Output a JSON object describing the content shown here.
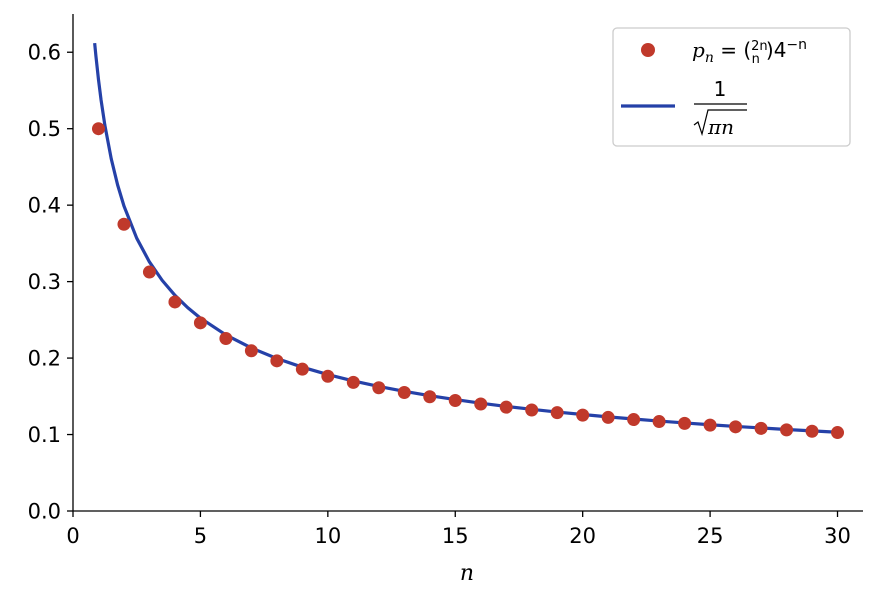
{
  "chart_data": {
    "type": "scatter",
    "xlabel": "n",
    "ylabel": "",
    "xlim": [
      0,
      31
    ],
    "ylim": [
      0,
      0.65
    ],
    "xticks": [
      0,
      5,
      10,
      15,
      20,
      25,
      30
    ],
    "yticks": [
      0.0,
      0.1,
      0.2,
      0.3,
      0.4,
      0.5,
      0.6
    ],
    "xtick_labels": [
      "0",
      "5",
      "10",
      "15",
      "20",
      "25",
      "30"
    ],
    "ytick_labels": [
      "0.0",
      "0.1",
      "0.2",
      "0.3",
      "0.4",
      "0.5",
      "0.6"
    ],
    "grid": false,
    "legend_position": "top-right",
    "series": [
      {
        "kind": "points",
        "legend": "p_n = C(2n, n) 4^-n",
        "color": "#c0392b",
        "x": [
          1,
          2,
          3,
          4,
          5,
          6,
          7,
          8,
          9,
          10,
          11,
          12,
          13,
          14,
          15,
          16,
          17,
          18,
          19,
          20,
          21,
          22,
          23,
          24,
          25,
          26,
          27,
          28,
          29,
          30
        ],
        "y": [
          0.5,
          0.375,
          0.3125,
          0.2734,
          0.2461,
          0.2256,
          0.2095,
          0.1964,
          0.1855,
          0.1762,
          0.1682,
          0.1612,
          0.155,
          0.1494,
          0.1445,
          0.1399,
          0.1358,
          0.1321,
          0.1286,
          0.1254,
          0.1224,
          0.1196,
          0.117,
          0.1146,
          0.1123,
          0.1101,
          0.1081,
          0.1061,
          0.1043,
          0.1026
        ]
      },
      {
        "kind": "line",
        "legend": "1/sqrt(pi n)",
        "color": "#2541a8",
        "x": [
          0.85,
          0.9,
          1,
          1.1,
          1.25,
          1.5,
          1.75,
          2,
          2.5,
          3,
          3.5,
          4,
          4.5,
          5,
          6,
          7,
          8,
          9,
          10,
          11,
          12,
          13,
          14,
          15,
          16,
          17,
          18,
          19,
          20,
          21,
          22,
          23,
          24,
          25,
          26,
          27,
          28,
          29,
          30
        ],
        "y": [
          0.6119,
          0.5947,
          0.5642,
          0.5379,
          0.5046,
          0.4607,
          0.4265,
          0.3989,
          0.3568,
          0.3257,
          0.3016,
          0.2821,
          0.266,
          0.2523,
          0.2303,
          0.2132,
          0.1995,
          0.1881,
          0.1784,
          0.1701,
          0.1629,
          0.1565,
          0.1508,
          0.1457,
          0.141,
          0.1368,
          0.133,
          0.1294,
          0.1262,
          0.1231,
          0.1203,
          0.1176,
          0.1152,
          0.1128,
          0.1106,
          0.1086,
          0.1066,
          0.1048,
          0.103
        ]
      }
    ]
  }
}
